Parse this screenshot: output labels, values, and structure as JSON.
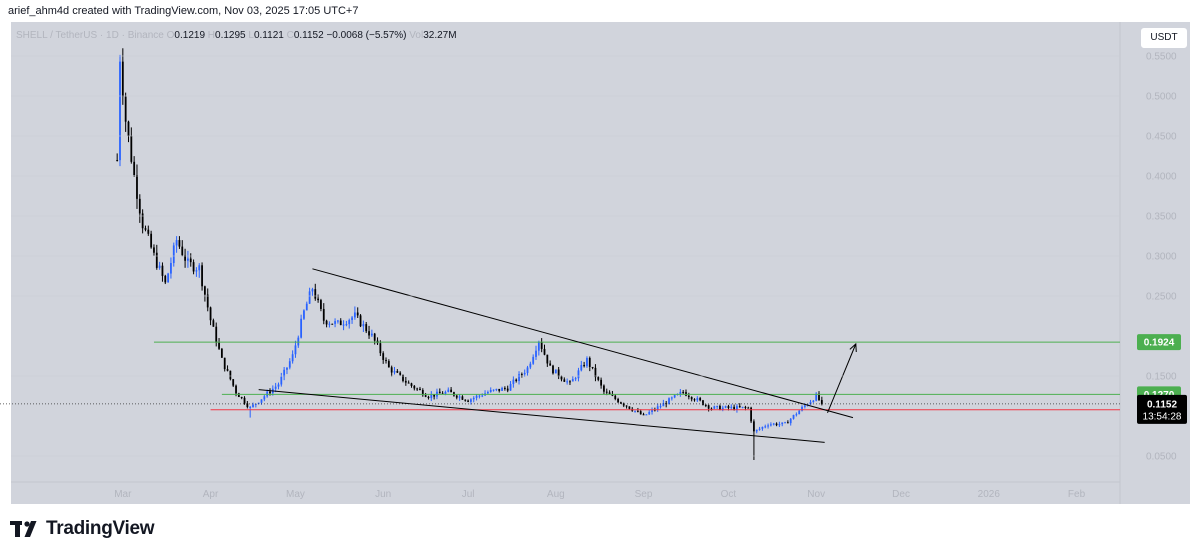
{
  "header": {
    "caption": "arief_ahm4d created with TradingView.com, Nov 03, 2025 17:05 UTC+7"
  },
  "legend": {
    "symbol": "SHELL / TetherUS · 1D · Binance",
    "o_label": "O",
    "o_value": "0.1219",
    "h_label": "H",
    "h_value": "0.1295",
    "l_label": "L",
    "l_value": "0.1121",
    "c_label": "C",
    "c_value": "0.1152",
    "change": "−0.0068 (−5.57%)",
    "vol_label": "Vol",
    "vol_value": "32.27M"
  },
  "currency_button": "USDT",
  "footer": {
    "brand": "TradingView"
  },
  "colors": {
    "background": "#d1d4dc",
    "candle": "#2962ff",
    "candle_down": "#000000",
    "green_line": "#4caf50",
    "red_line": "#f23645",
    "last_price_bg": "#000000"
  },
  "chart_data": {
    "type": "candlestick",
    "ylim": [
      0.02,
      0.58
    ],
    "y_ticks": [
      {
        "v": 0.55,
        "label": "0.5500"
      },
      {
        "v": 0.5,
        "label": "0.5000"
      },
      {
        "v": 0.45,
        "label": "0.4500"
      },
      {
        "v": 0.4,
        "label": "0.4000"
      },
      {
        "v": 0.35,
        "label": "0.3500"
      },
      {
        "v": 0.3,
        "label": "0.3000"
      },
      {
        "v": 0.25,
        "label": "0.2500"
      },
      {
        "v": 0.15,
        "label": "0.1500"
      },
      {
        "v": 0.05,
        "label": "0.0500"
      }
    ],
    "x_ticks": [
      {
        "label": "Mar",
        "date": "2025-03-01"
      },
      {
        "label": "Apr",
        "date": "2025-04-01"
      },
      {
        "label": "May",
        "date": "2025-05-01"
      },
      {
        "label": "Jun",
        "date": "2025-06-01"
      },
      {
        "label": "Jul",
        "date": "2025-07-01"
      },
      {
        "label": "Aug",
        "date": "2025-08-01"
      },
      {
        "label": "Sep",
        "date": "2025-09-01"
      },
      {
        "label": "Oct",
        "date": "2025-10-01"
      },
      {
        "label": "Nov",
        "date": "2025-11-01"
      },
      {
        "label": "Dec",
        "date": "2025-12-01"
      },
      {
        "label": "2026",
        "date": "2026-01-01"
      },
      {
        "label": "Feb",
        "date": "2026-02-01"
      }
    ],
    "price_path": [
      {
        "date": "2025-02-27",
        "price": 0.42
      },
      {
        "date": "2025-02-28",
        "price": 0.55
      },
      {
        "date": "2025-03-02",
        "price": 0.47
      },
      {
        "date": "2025-03-05",
        "price": 0.4
      },
      {
        "date": "2025-03-08",
        "price": 0.34
      },
      {
        "date": "2025-03-12",
        "price": 0.3
      },
      {
        "date": "2025-03-16",
        "price": 0.265
      },
      {
        "date": "2025-03-20",
        "price": 0.32
      },
      {
        "date": "2025-03-24",
        "price": 0.29
      },
      {
        "date": "2025-03-28",
        "price": 0.285
      },
      {
        "date": "2025-04-01",
        "price": 0.22
      },
      {
        "date": "2025-04-05",
        "price": 0.17
      },
      {
        "date": "2025-04-10",
        "price": 0.13
      },
      {
        "date": "2025-04-15",
        "price": 0.11
      },
      {
        "date": "2025-04-20",
        "price": 0.125
      },
      {
        "date": "2025-04-25",
        "price": 0.14
      },
      {
        "date": "2025-04-30",
        "price": 0.175
      },
      {
        "date": "2025-05-04",
        "price": 0.23
      },
      {
        "date": "2025-05-07",
        "price": 0.26
      },
      {
        "date": "2025-05-11",
        "price": 0.22
      },
      {
        "date": "2025-05-16",
        "price": 0.215
      },
      {
        "date": "2025-05-22",
        "price": 0.225
      },
      {
        "date": "2025-05-28",
        "price": 0.2
      },
      {
        "date": "2025-06-03",
        "price": 0.16
      },
      {
        "date": "2025-06-10",
        "price": 0.14
      },
      {
        "date": "2025-06-17",
        "price": 0.125
      },
      {
        "date": "2025-06-24",
        "price": 0.13
      },
      {
        "date": "2025-07-01",
        "price": 0.12
      },
      {
        "date": "2025-07-08",
        "price": 0.13
      },
      {
        "date": "2025-07-15",
        "price": 0.135
      },
      {
        "date": "2025-07-22",
        "price": 0.16
      },
      {
        "date": "2025-07-26",
        "price": 0.195
      },
      {
        "date": "2025-07-30",
        "price": 0.16
      },
      {
        "date": "2025-08-06",
        "price": 0.14
      },
      {
        "date": "2025-08-12",
        "price": 0.17
      },
      {
        "date": "2025-08-18",
        "price": 0.13
      },
      {
        "date": "2025-08-25",
        "price": 0.115
      },
      {
        "date": "2025-09-01",
        "price": 0.1
      },
      {
        "date": "2025-09-08",
        "price": 0.115
      },
      {
        "date": "2025-09-15",
        "price": 0.13
      },
      {
        "date": "2025-09-20",
        "price": 0.12
      },
      {
        "date": "2025-09-25",
        "price": 0.11
      },
      {
        "date": "2025-10-03",
        "price": 0.11
      },
      {
        "date": "2025-10-08",
        "price": 0.11
      },
      {
        "date": "2025-10-10",
        "price": 0.08
      },
      {
        "date": "2025-10-15",
        "price": 0.09
      },
      {
        "date": "2025-10-21",
        "price": 0.09
      },
      {
        "date": "2025-10-27",
        "price": 0.11
      },
      {
        "date": "2025-11-01",
        "price": 0.125
      },
      {
        "date": "2025-11-03",
        "price": 0.1152
      }
    ],
    "wick_extremes": [
      {
        "date": "2025-10-10",
        "low": 0.045
      },
      {
        "date": "2025-04-15",
        "low": 0.098
      }
    ],
    "horizontal_lines": [
      {
        "price": 0.1924,
        "color": "green",
        "label": "0.1924",
        "start": "2025-03-12"
      },
      {
        "price": 0.127,
        "color": "green",
        "label": "0.1270",
        "start": "2025-04-05"
      },
      {
        "price": 0.1078,
        "color": "red",
        "label": "0.1078",
        "start": "2025-04-01"
      }
    ],
    "last_price": {
      "value": "0.1152",
      "countdown": "13:54:28"
    },
    "trendlines": [
      {
        "name": "upper",
        "from": {
          "date": "2025-05-07",
          "price": 0.284
        },
        "to": {
          "date": "2025-11-14",
          "price": 0.098
        }
      },
      {
        "name": "lower",
        "from": {
          "date": "2025-04-18",
          "price": 0.133
        },
        "to": {
          "date": "2025-11-04",
          "price": 0.067
        }
      }
    ],
    "arrow": {
      "from": {
        "date": "2025-11-05",
        "price": 0.104
      },
      "to": {
        "date": "2025-11-15",
        "price": 0.19
      }
    }
  }
}
